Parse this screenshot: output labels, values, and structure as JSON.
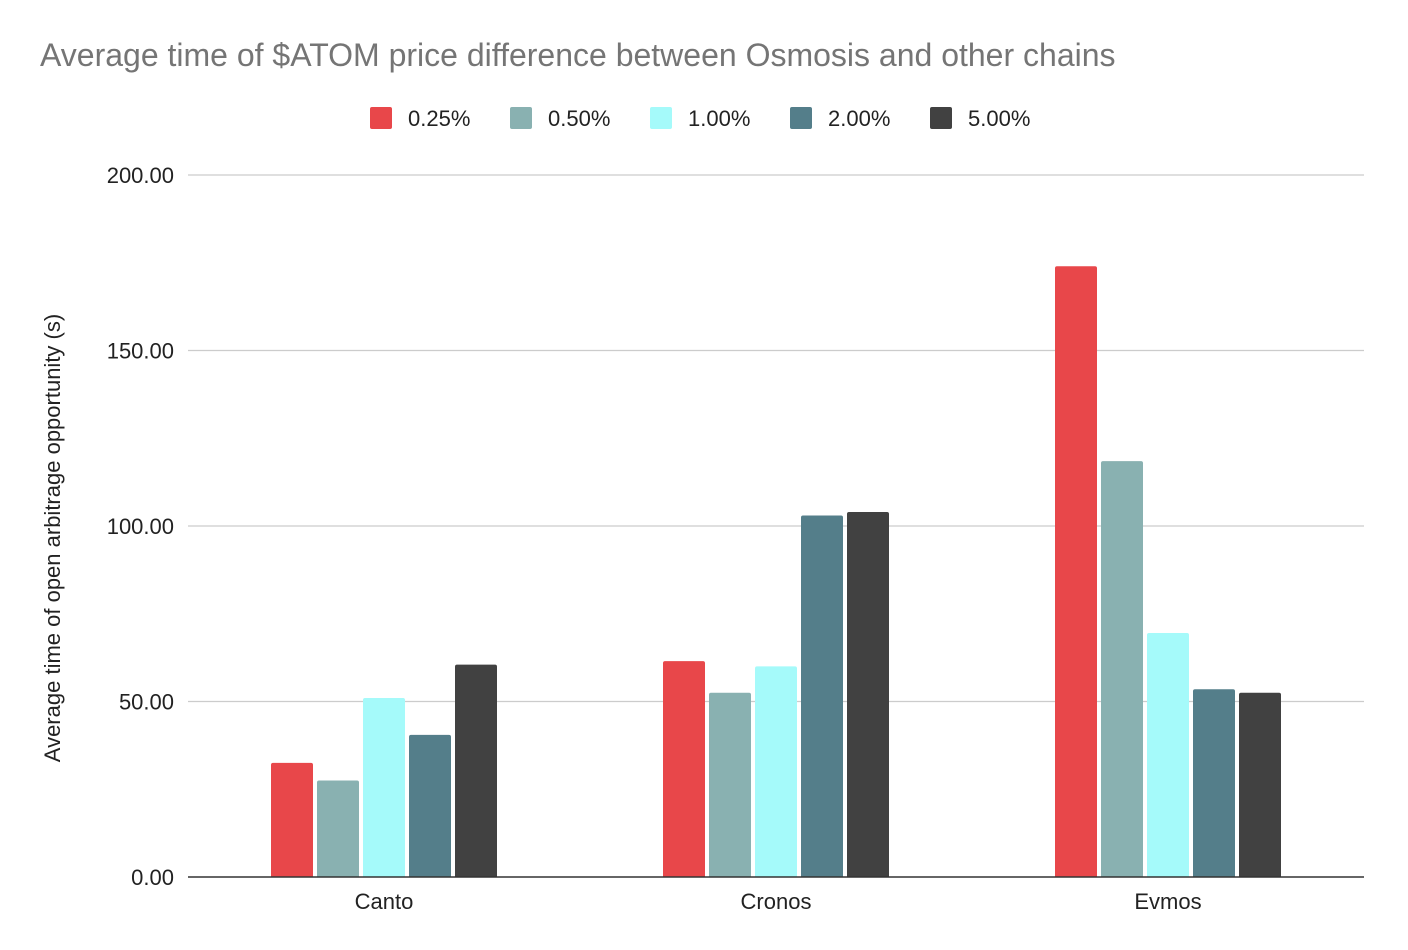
{
  "chart_data": {
    "type": "bar",
    "title": "Average time of  $ATOM price difference between Osmosis and other chains",
    "xlabel": "",
    "ylabel": "Average time of open arbitrage opportunity (s)",
    "categories": [
      "Canto",
      "Cronos",
      "Evmos"
    ],
    "ylim": [
      0,
      200
    ],
    "yticks": [
      "0.00",
      "50.00",
      "100.00",
      "150.00",
      "200.00"
    ],
    "ytick_values": [
      0,
      50,
      100,
      150,
      200
    ],
    "grid": true,
    "legend_position": "top",
    "series": [
      {
        "name": "0.25%",
        "color": "#e8474a",
        "values": [
          32.5,
          61.5,
          174
        ]
      },
      {
        "name": "0.50%",
        "color": "#89b1b1",
        "values": [
          27.5,
          52.5,
          118.5
        ]
      },
      {
        "name": "1.00%",
        "color": "#a5fafa",
        "values": [
          51,
          60,
          69.5
        ]
      },
      {
        "name": "2.00%",
        "color": "#547e8a",
        "values": [
          40.5,
          103,
          53.5
        ]
      },
      {
        "name": "5.00%",
        "color": "#414141",
        "values": [
          60.5,
          104,
          52.5
        ]
      }
    ]
  }
}
